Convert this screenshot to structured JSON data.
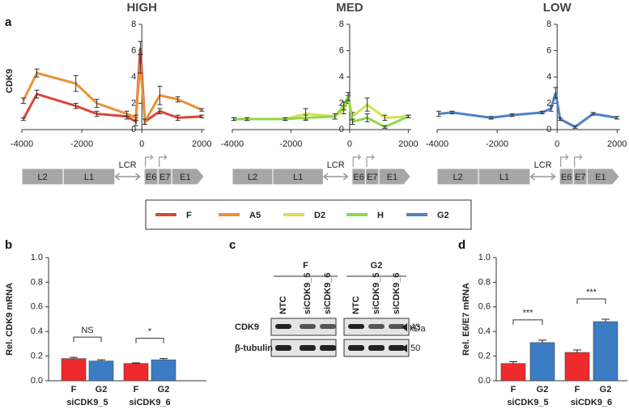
{
  "panels": [
    "a",
    "b",
    "c",
    "d"
  ],
  "gene_map": [
    "L2",
    "L1",
    "LCR",
    "E6",
    "E7",
    "E1"
  ],
  "blot": {
    "groups": [
      "F",
      "G2"
    ],
    "lanes": [
      "NTC",
      "siCDK9_5",
      "siCDK9_6"
    ],
    "unit": "kDa",
    "rows": [
      {
        "name": "CDK9",
        "kda": 43
      },
      {
        "name": "β-tubulin",
        "kda": 50
      }
    ]
  },
  "chart_data": [
    {
      "type": "line",
      "title": "HIGH",
      "y_label": "CDK9",
      "x": [
        -3950,
        -3500,
        -2200,
        -1500,
        -500,
        -200,
        -50,
        100,
        600,
        1200,
        2000
      ],
      "xlim": [
        -4000,
        2100
      ],
      "xticks": [
        -4000,
        -2000,
        0,
        2000
      ],
      "ylim": [
        0,
        8
      ],
      "yticks": [
        0,
        2,
        4,
        6,
        8
      ],
      "series": [
        {
          "name": "F",
          "color": "#d9453b",
          "values": [
            0.8,
            2.7,
            1.8,
            1.2,
            1.0,
            0.6,
            6.2,
            0.6,
            1.4,
            0.9,
            1.0
          ],
          "errors": [
            0.1,
            0.3,
            0.2,
            0.2,
            0.2,
            0.3,
            0.5,
            0.2,
            0.2,
            0.2,
            0.1
          ]
        },
        {
          "name": "A5",
          "color": "#e8923a",
          "values": [
            2.2,
            4.3,
            3.5,
            2.0,
            1.2,
            0.9,
            5.0,
            0.6,
            2.6,
            2.3,
            1.5
          ],
          "errors": [
            0.2,
            0.3,
            0.6,
            0.3,
            0.2,
            0.2,
            0.7,
            0.2,
            0.7,
            0.2,
            0.1
          ]
        }
      ]
    },
    {
      "type": "line",
      "title": "MED",
      "x": [
        -3950,
        -3500,
        -2200,
        -1500,
        -500,
        -200,
        -50,
        100,
        600,
        1200,
        2000
      ],
      "xlim": [
        -4000,
        2100
      ],
      "xticks": [
        -4000,
        -2000,
        0,
        2000
      ],
      "ylim": [
        0,
        8
      ],
      "yticks": [
        0,
        2,
        4,
        6,
        8
      ],
      "series": [
        {
          "name": "D2",
          "color": "#d6e24c",
          "values": [
            0.8,
            0.8,
            0.8,
            1.2,
            1.0,
            1.5,
            2.3,
            1.0,
            1.9,
            0.9,
            1.0
          ],
          "errors": [
            0.1,
            0.1,
            0.1,
            0.4,
            0.2,
            0.3,
            0.3,
            0.3,
            0.5,
            0.2,
            0.1
          ]
        },
        {
          "name": "H",
          "color": "#8ed84b",
          "values": [
            0.8,
            0.8,
            0.8,
            0.9,
            1.0,
            1.8,
            2.5,
            0.6,
            0.9,
            0.2,
            1.0
          ],
          "errors": [
            0.1,
            0.1,
            0.1,
            0.2,
            0.2,
            0.3,
            0.3,
            0.2,
            0.3,
            0.1,
            0.1
          ]
        }
      ]
    },
    {
      "type": "line",
      "title": "LOW",
      "x": [
        -3950,
        -3500,
        -2200,
        -1500,
        -500,
        -200,
        -50,
        100,
        600,
        1200,
        2000
      ],
      "xlim": [
        -4000,
        2100
      ],
      "xticks": [
        -4000,
        -2000,
        0,
        2000
      ],
      "ylim": [
        0,
        8
      ],
      "yticks": [
        0,
        2,
        4,
        6,
        8
      ],
      "series": [
        {
          "name": "G2",
          "color": "#4d82c3",
          "values": [
            1.2,
            1.3,
            0.9,
            1.1,
            1.3,
            1.6,
            2.8,
            0.8,
            0.2,
            1.2,
            0.9
          ],
          "errors": [
            0.2,
            0.1,
            0.1,
            0.1,
            0.1,
            0.2,
            0.4,
            0.1,
            0.1,
            0.1,
            0.1
          ]
        }
      ]
    },
    {
      "type": "bar",
      "y_label": "Rel. CDK9 mRNA",
      "categories": [
        "F",
        "G2",
        "F",
        "G2"
      ],
      "groups": [
        "siCDK9_5",
        "siCDK9_6"
      ],
      "values": [
        0.18,
        0.16,
        0.14,
        0.17
      ],
      "errors": [
        0.01,
        0.01,
        0.005,
        0.01
      ],
      "colors": [
        "#ee2a2c",
        "#3b7cc4",
        "#ee2a2c",
        "#3b7cc4"
      ],
      "annotations": [
        "NS",
        "*"
      ],
      "ylim": [
        0,
        1
      ],
      "yticks": [
        {
          "value": 0,
          "label": "0.0"
        },
        0.2,
        0.4,
        0.6,
        0.8,
        {
          "value": 1,
          "label": "1.0"
        }
      ]
    },
    {
      "type": "bar",
      "y_label": "Rel. E6/E7 mRNA",
      "categories": [
        "F",
        "G2",
        "F",
        "G2"
      ],
      "groups": [
        "siCDK9_5",
        "siCDK9_6"
      ],
      "values": [
        0.14,
        0.31,
        0.23,
        0.48
      ],
      "errors": [
        0.015,
        0.02,
        0.02,
        0.02
      ],
      "colors": [
        "#ee2a2c",
        "#3b7cc4",
        "#ee2a2c",
        "#3b7cc4"
      ],
      "annotations": [
        "***",
        "***"
      ],
      "ylim": [
        0,
        1
      ],
      "yticks": [
        {
          "value": 0,
          "label": "0.0"
        },
        0.2,
        0.4,
        0.6,
        0.8,
        {
          "value": 1,
          "label": "1.0"
        }
      ]
    }
  ]
}
